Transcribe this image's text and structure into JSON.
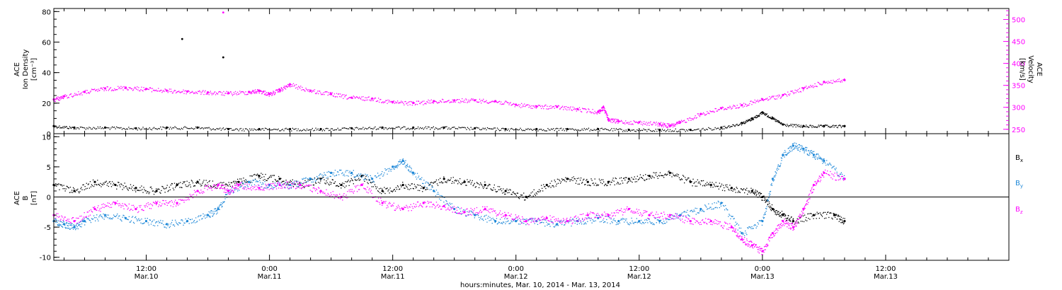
{
  "colors": {
    "black": "#000000",
    "magenta": "#ff00ff",
    "blue": "#1e88d8"
  },
  "xaxis": {
    "caption": "hours:minutes, Mar. 10, 2014 - Mar. 13, 2014",
    "range_hours": [
      3.0,
      96.0
    ],
    "ticks": [
      {
        "hour": 12,
        "time": "12:00",
        "date": "Mar.10"
      },
      {
        "hour": 24,
        "time": "0:00",
        "date": "Mar.11"
      },
      {
        "hour": 36,
        "time": "12:00",
        "date": "Mar.11"
      },
      {
        "hour": 48,
        "time": "0:00",
        "date": "Mar.12"
      },
      {
        "hour": 60,
        "time": "12:00",
        "date": "Mar.12"
      },
      {
        "hour": 72,
        "time": "0:00",
        "date": "Mar.13"
      },
      {
        "hour": 84,
        "time": "12:00",
        "date": "Mar.13"
      }
    ]
  },
  "chart_data": [
    {
      "type": "scatter",
      "panel": "top",
      "x_unit": "hours since Mar. 10, 2014 00:00",
      "left_axis": {
        "label_lines": [
          "ACE",
          "Ion Density",
          "[cm⁻³]"
        ],
        "ylim": [
          0,
          82
        ],
        "ticks": [
          0,
          20,
          40,
          60,
          80
        ]
      },
      "right_axis": {
        "label_lines": [
          "ACE",
          "Velocity",
          "[km/s]"
        ],
        "ylim": [
          240,
          525
        ],
        "ticks": [
          250,
          300,
          350,
          400,
          450,
          500
        ]
      },
      "series": [
        {
          "axis": "left",
          "color": "#000000",
          "x": [
            3,
            5,
            8,
            11,
            14,
            17,
            20,
            23,
            26,
            29,
            32,
            35,
            38,
            41,
            44,
            47,
            50,
            53,
            56,
            59,
            62,
            65,
            68,
            70,
            71,
            72,
            73,
            74,
            76,
            78,
            80
          ],
          "y": [
            5,
            4,
            4,
            3.5,
            4,
            4,
            3,
            3,
            3,
            3,
            3.5,
            4,
            4,
            4,
            3.5,
            3,
            3,
            3,
            3,
            2.5,
            2.5,
            2.5,
            4,
            7,
            10,
            14,
            10,
            6,
            5,
            5,
            5
          ]
        },
        {
          "axis": "right",
          "color": "#ff00ff",
          "x": [
            3,
            4,
            6,
            8,
            10,
            12,
            14,
            16,
            18,
            20,
            22,
            23,
            24,
            25,
            26,
            28,
            30,
            32,
            34,
            36,
            38,
            40,
            42,
            44,
            46,
            48,
            50,
            52,
            54,
            56,
            56.5,
            57,
            58,
            60,
            62,
            63,
            64,
            66,
            68,
            70,
            72,
            74,
            76,
            78,
            80
          ],
          "y": [
            318,
            325,
            335,
            343,
            345,
            342,
            338,
            336,
            334,
            332,
            335,
            338,
            330,
            340,
            352,
            338,
            330,
            322,
            320,
            312,
            310,
            314,
            316,
            316,
            314,
            306,
            302,
            301,
            296,
            290,
            300,
            272,
            268,
            266,
            262,
            258,
            266,
            285,
            298,
            305,
            318,
            328,
            343,
            358,
            362
          ]
        }
      ],
      "isolated_points": [
        {
          "x": 19.5,
          "y": 516,
          "axis": "right",
          "color": "#ff00ff"
        },
        {
          "x": 15.5,
          "y": 62,
          "axis": "left",
          "color": "#000000"
        },
        {
          "x": 19.5,
          "y": 50,
          "axis": "left",
          "color": "#000000"
        }
      ]
    },
    {
      "type": "scatter",
      "panel": "bottom",
      "x_unit": "hours since Mar. 10, 2014 00:00",
      "left_axis": {
        "label_lines": [
          "ACE",
          "B",
          "[nT]"
        ],
        "ylim": [
          -10.5,
          10.5
        ],
        "ticks": [
          -10,
          -5,
          0,
          5,
          10
        ]
      },
      "legend_placement": "right",
      "series": [
        {
          "name": "Bx",
          "color": "#000000",
          "x": [
            3,
            5,
            7,
            9,
            11,
            13,
            15,
            17,
            19,
            21,
            23,
            25,
            27,
            29,
            31,
            33,
            35,
            37,
            39,
            41,
            43,
            45,
            47,
            49,
            51,
            53,
            55,
            57,
            59,
            61,
            63,
            65,
            67,
            69,
            71,
            72,
            73,
            74,
            75,
            77,
            79,
            80
          ],
          "y": [
            2,
            1,
            2.5,
            2,
            1.5,
            1,
            2,
            2.5,
            2,
            2.5,
            3.5,
            3,
            2,
            3,
            2,
            3.5,
            1,
            2,
            1.5,
            3,
            2.5,
            2,
            1,
            0,
            2,
            3,
            2.5,
            2.5,
            3,
            3.5,
            4,
            2.5,
            2,
            1.5,
            1,
            0,
            -2,
            -3,
            -4,
            -3,
            -3,
            -4
          ]
        },
        {
          "name": "By",
          "color": "#1e88d8",
          "x": [
            3,
            4,
            5,
            6,
            8,
            10,
            12,
            14,
            16,
            18,
            19,
            20,
            22,
            24,
            26,
            28,
            30,
            32,
            34,
            36,
            37,
            38,
            40,
            42,
            44,
            46,
            48,
            50,
            52,
            54,
            56,
            58,
            60,
            62,
            64,
            66,
            68,
            70,
            72,
            73,
            74,
            75,
            76,
            77,
            78,
            80
          ],
          "y": [
            -4,
            -4.5,
            -5,
            -4,
            -3,
            -3.5,
            -4,
            -4.5,
            -4,
            -3,
            -2,
            1,
            2.5,
            2,
            2,
            3,
            4,
            4,
            3,
            5,
            6,
            4,
            1,
            -2,
            -3,
            -4,
            -4,
            -4,
            -4.5,
            -4,
            -3.5,
            -4,
            -4,
            -4,
            -3,
            -2,
            -1,
            -6,
            -4,
            3,
            7,
            8.5,
            8,
            7,
            6,
            3
          ]
        },
        {
          "name": "Bz",
          "color": "#ff00ff",
          "x": [
            3,
            5,
            7,
            9,
            11,
            13,
            15,
            17,
            19,
            20,
            21,
            23,
            25,
            27,
            29,
            31,
            33,
            35,
            37,
            39,
            41,
            43,
            45,
            47,
            49,
            51,
            53,
            55,
            57,
            59,
            61,
            63,
            65,
            67,
            69,
            70,
            71,
            72,
            73,
            74,
            75,
            76,
            77,
            78,
            80
          ],
          "y": [
            -3,
            -4,
            -2,
            -1,
            -2,
            -1,
            -1,
            1,
            2,
            1,
            2,
            1.5,
            2,
            2,
            1,
            0,
            2,
            -1,
            -2,
            -1,
            -1.5,
            -2.5,
            -2,
            -3,
            -4,
            -3.5,
            -4,
            -3,
            -3,
            -2,
            -3,
            -3,
            -4,
            -4,
            -5,
            -7,
            -8,
            -9,
            -6,
            -4,
            -5,
            -2,
            2,
            4,
            3
          ]
        }
      ]
    }
  ]
}
